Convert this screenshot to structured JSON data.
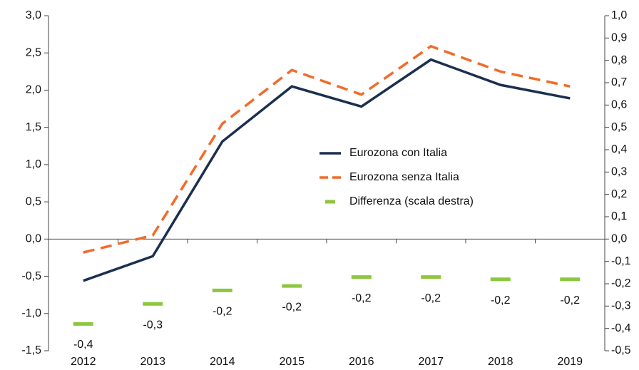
{
  "chart_data": {
    "type": "line",
    "categories": [
      "2012",
      "2013",
      "2014",
      "2015",
      "2016",
      "2017",
      "2018",
      "2019"
    ],
    "series": [
      {
        "name": "Eurozona con Italia",
        "color": "#1b2f4e",
        "style": "solid",
        "values": [
          -0.56,
          -0.23,
          1.31,
          2.05,
          1.78,
          2.41,
          2.07,
          1.89
        ]
      },
      {
        "name": "Eurozona senza Italia",
        "color": "#f26b2a",
        "style": "dashed",
        "values": [
          -0.18,
          0.05,
          1.55,
          2.27,
          1.94,
          2.59,
          2.25,
          2.05
        ]
      },
      {
        "name": "Differenza (scala destra)",
        "color": "#8dc63f",
        "style": "marker",
        "axis": "y2",
        "values": [
          -0.38,
          -0.29,
          -0.23,
          -0.21,
          -0.17,
          -0.17,
          -0.18,
          -0.18
        ],
        "value_labels": [
          "-0,4",
          "-0,3",
          "-0,2",
          "-0,2",
          "-0,2",
          "-0,2",
          "-0,2",
          "-0,2"
        ]
      }
    ],
    "ylim": [
      -1.5,
      3.0
    ],
    "yticks": [
      {
        "value": -1.5,
        "label": "-1,5"
      },
      {
        "value": -1.0,
        "label": "-1,0"
      },
      {
        "value": -0.5,
        "label": "-0,5"
      },
      {
        "value": 0,
        "label": "0,0"
      },
      {
        "value": 0.5,
        "label": "0,5"
      },
      {
        "value": 1.0,
        "label": "1,0"
      },
      {
        "value": 1.5,
        "label": "1,5"
      },
      {
        "value": 2.0,
        "label": "2,0"
      },
      {
        "value": 2.5,
        "label": "2,5"
      },
      {
        "value": 3.0,
        "label": "3,0"
      }
    ],
    "y2lim": [
      -0.5,
      1.0
    ],
    "y2ticks": [
      {
        "value": -0.5,
        "label": "-0,5"
      },
      {
        "value": -0.4,
        "label": "-0,4"
      },
      {
        "value": -0.3,
        "label": "-0,3"
      },
      {
        "value": -0.2,
        "label": "-0,2"
      },
      {
        "value": -0.1,
        "label": "-0,1"
      },
      {
        "value": 0,
        "label": "0,0"
      },
      {
        "value": 0.1,
        "label": "0,1"
      },
      {
        "value": 0.2,
        "label": "0,2"
      },
      {
        "value": 0.3,
        "label": "0,3"
      },
      {
        "value": 0.4,
        "label": "0,4"
      },
      {
        "value": 0.5,
        "label": "0,5"
      },
      {
        "value": 0.6,
        "label": "0,6"
      },
      {
        "value": 0.7,
        "label": "0,7"
      },
      {
        "value": 0.8,
        "label": "0,8"
      },
      {
        "value": 0.9,
        "label": "0,9"
      },
      {
        "value": 1.0,
        "label": "1,0"
      }
    ],
    "grid": false,
    "legend": "center"
  }
}
